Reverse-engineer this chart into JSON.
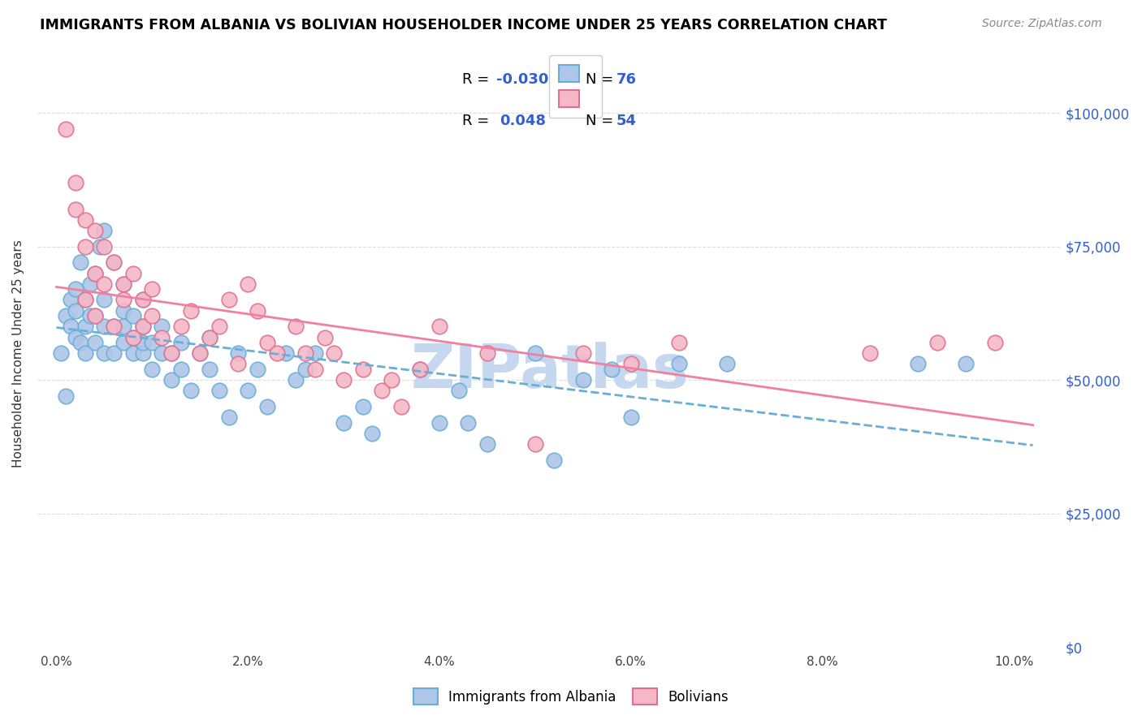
{
  "title": "IMMIGRANTS FROM ALBANIA VS BOLIVIAN HOUSEHOLDER INCOME UNDER 25 YEARS CORRELATION CHART",
  "source": "Source: ZipAtlas.com",
  "ylabel": "Householder Income Under 25 years",
  "xlabel_ticks": [
    "0.0%",
    "2.0%",
    "4.0%",
    "6.0%",
    "8.0%",
    "10.0%"
  ],
  "xlabel_vals": [
    0.0,
    0.02,
    0.04,
    0.06,
    0.08,
    0.1
  ],
  "ylabel_ticks": [
    "$0",
    "$25,000",
    "$50,000",
    "$75,000",
    "$100,000"
  ],
  "ylabel_vals": [
    0,
    25000,
    50000,
    75000,
    100000
  ],
  "ylim": [
    0,
    110000
  ],
  "xlim": [
    -0.002,
    0.105
  ],
  "r_albania": -0.03,
  "n_albania": 76,
  "r_bolivian": 0.048,
  "n_bolivian": 54,
  "color_albania_face": "#aec6e8",
  "color_albania_edge": "#6aaed6",
  "color_bolivian_face": "#f4b8c8",
  "color_bolivian_edge": "#e07090",
  "color_albania_trend": "#6aaed6",
  "color_bolivian_trend": "#f080a0",
  "color_r_text": "#3060d0",
  "color_grid": "#dddddd",
  "watermark_color": "#c5d8f0",
  "albania_x": [
    0.0005,
    0.001,
    0.001,
    0.0015,
    0.0015,
    0.002,
    0.002,
    0.002,
    0.0025,
    0.0025,
    0.003,
    0.003,
    0.003,
    0.0035,
    0.0035,
    0.004,
    0.004,
    0.004,
    0.0045,
    0.005,
    0.005,
    0.005,
    0.005,
    0.006,
    0.006,
    0.006,
    0.007,
    0.007,
    0.007,
    0.007,
    0.008,
    0.008,
    0.008,
    0.009,
    0.009,
    0.009,
    0.009,
    0.01,
    0.01,
    0.011,
    0.011,
    0.012,
    0.012,
    0.013,
    0.013,
    0.014,
    0.015,
    0.016,
    0.016,
    0.017,
    0.018,
    0.019,
    0.02,
    0.021,
    0.022,
    0.024,
    0.025,
    0.026,
    0.027,
    0.03,
    0.032,
    0.033,
    0.038,
    0.04,
    0.042,
    0.043,
    0.045,
    0.05,
    0.052,
    0.055,
    0.058,
    0.06,
    0.065,
    0.07,
    0.09,
    0.095
  ],
  "albania_y": [
    55000,
    47000,
    62000,
    60000,
    65000,
    58000,
    63000,
    67000,
    57000,
    72000,
    55000,
    60000,
    65000,
    62000,
    68000,
    57000,
    62000,
    70000,
    75000,
    55000,
    60000,
    65000,
    78000,
    55000,
    60000,
    72000,
    57000,
    60000,
    63000,
    68000,
    55000,
    58000,
    62000,
    55000,
    57000,
    60000,
    65000,
    52000,
    57000,
    55000,
    60000,
    50000,
    55000,
    52000,
    57000,
    48000,
    55000,
    52000,
    58000,
    48000,
    43000,
    55000,
    48000,
    52000,
    45000,
    55000,
    50000,
    52000,
    55000,
    42000,
    45000,
    40000,
    52000,
    42000,
    48000,
    42000,
    38000,
    55000,
    35000,
    50000,
    52000,
    43000,
    53000,
    53000,
    53000,
    53000
  ],
  "bolivian_x": [
    0.001,
    0.002,
    0.002,
    0.003,
    0.003,
    0.003,
    0.004,
    0.004,
    0.004,
    0.005,
    0.005,
    0.006,
    0.006,
    0.007,
    0.007,
    0.008,
    0.008,
    0.009,
    0.009,
    0.01,
    0.01,
    0.011,
    0.012,
    0.013,
    0.014,
    0.015,
    0.016,
    0.017,
    0.018,
    0.019,
    0.02,
    0.021,
    0.022,
    0.023,
    0.025,
    0.026,
    0.027,
    0.028,
    0.029,
    0.03,
    0.032,
    0.034,
    0.035,
    0.036,
    0.038,
    0.04,
    0.045,
    0.05,
    0.055,
    0.06,
    0.065,
    0.085,
    0.092,
    0.098
  ],
  "bolivian_y": [
    97000,
    87000,
    82000,
    75000,
    80000,
    65000,
    70000,
    78000,
    62000,
    75000,
    68000,
    72000,
    60000,
    68000,
    65000,
    70000,
    58000,
    65000,
    60000,
    62000,
    67000,
    58000,
    55000,
    60000,
    63000,
    55000,
    58000,
    60000,
    65000,
    53000,
    68000,
    63000,
    57000,
    55000,
    60000,
    55000,
    52000,
    58000,
    55000,
    50000,
    52000,
    48000,
    50000,
    45000,
    52000,
    60000,
    55000,
    38000,
    55000,
    53000,
    57000,
    55000,
    57000,
    57000
  ]
}
